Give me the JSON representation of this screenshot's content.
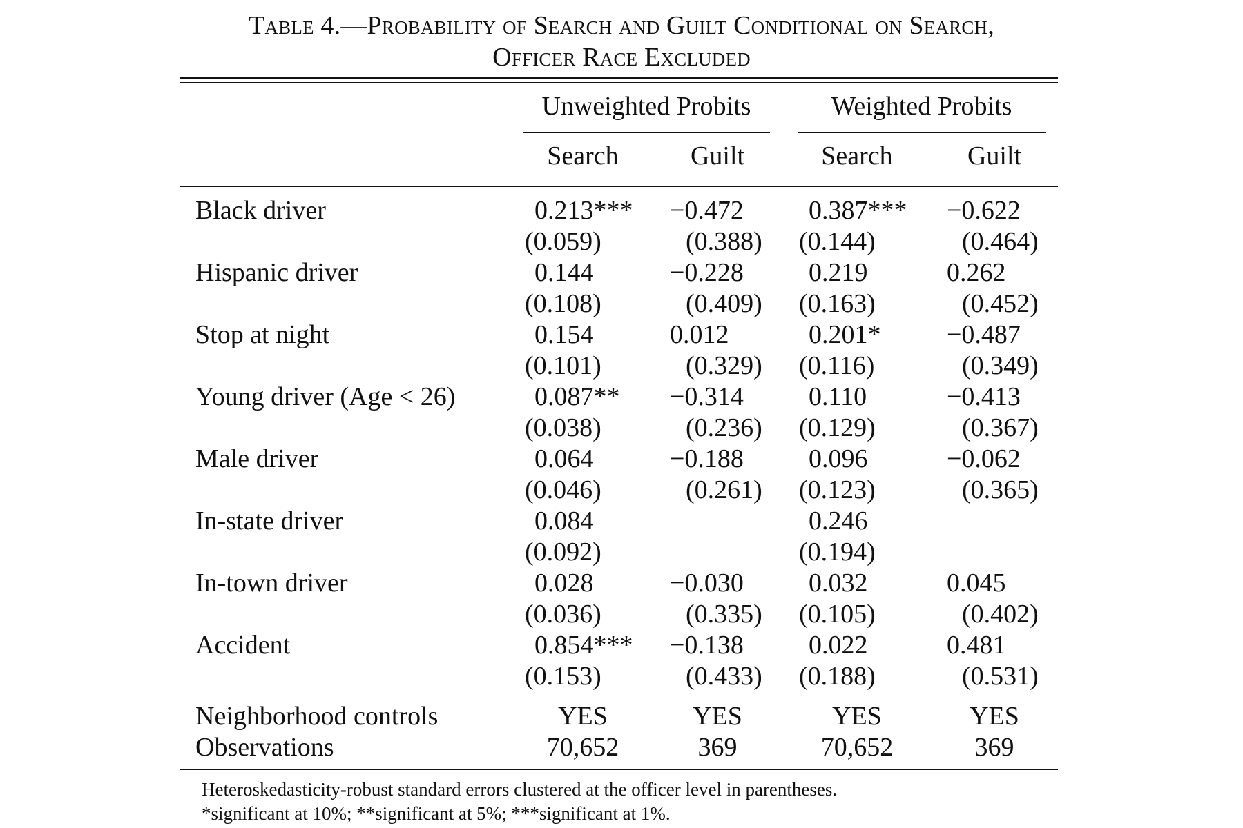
{
  "table": {
    "title_line1": "Table 4.—Probability of Search and Guilt Conditional on Search,",
    "title_line2": "Officer Race Excluded",
    "groups": [
      "Unweighted Probits",
      "Weighted Probits"
    ],
    "columns": [
      "Search",
      "Guilt",
      "Search",
      "Guilt"
    ],
    "rows": [
      {
        "label": "Black driver",
        "coef": [
          "0.213***",
          "−0.472",
          "0.387***",
          "−0.622"
        ],
        "se": [
          "(0.059)",
          "(0.388)",
          "(0.144)",
          "(0.464)"
        ]
      },
      {
        "label": "Hispanic driver",
        "coef": [
          "0.144",
          "−0.228",
          "0.219",
          "0.262"
        ],
        "se": [
          "(0.108)",
          "(0.409)",
          "(0.163)",
          "(0.452)"
        ]
      },
      {
        "label": "Stop at night",
        "coef": [
          "0.154",
          "0.012",
          "0.201*",
          "−0.487"
        ],
        "se": [
          "(0.101)",
          "(0.329)",
          "(0.116)",
          "(0.349)"
        ]
      },
      {
        "label": "Young driver (Age < 26)",
        "coef": [
          "0.087**",
          "−0.314",
          "0.110",
          "−0.413"
        ],
        "se": [
          "(0.038)",
          "(0.236)",
          "(0.129)",
          "(0.367)"
        ]
      },
      {
        "label": "Male driver",
        "coef": [
          "0.064",
          "−0.188",
          "0.096",
          "−0.062"
        ],
        "se": [
          "(0.046)",
          "(0.261)",
          "(0.123)",
          "(0.365)"
        ]
      },
      {
        "label": "In-state driver",
        "coef": [
          "0.084",
          "",
          "0.246",
          ""
        ],
        "se": [
          "(0.092)",
          "",
          "(0.194)",
          ""
        ]
      },
      {
        "label": "In-town driver",
        "coef": [
          "0.028",
          "−0.030",
          "0.032",
          "0.045"
        ],
        "se": [
          "(0.036)",
          "(0.335)",
          "(0.105)",
          "(0.402)"
        ]
      },
      {
        "label": "Accident",
        "coef": [
          "0.854***",
          "−0.138",
          "0.022",
          "0.481"
        ],
        "se": [
          "(0.153)",
          "(0.433)",
          "(0.188)",
          "(0.531)"
        ]
      }
    ],
    "footer_rows": [
      {
        "label": "Neighborhood controls",
        "values": [
          "YES",
          "YES",
          "YES",
          "YES"
        ]
      },
      {
        "label": "Observations",
        "values": [
          "70,652",
          "369",
          "70,652",
          "369"
        ]
      }
    ],
    "notes": [
      "Heteroskedasticity-robust standard errors clustered at the officer level in parentheses.",
      "*significant at 10%; **significant at 5%; ***significant at 1%."
    ]
  }
}
